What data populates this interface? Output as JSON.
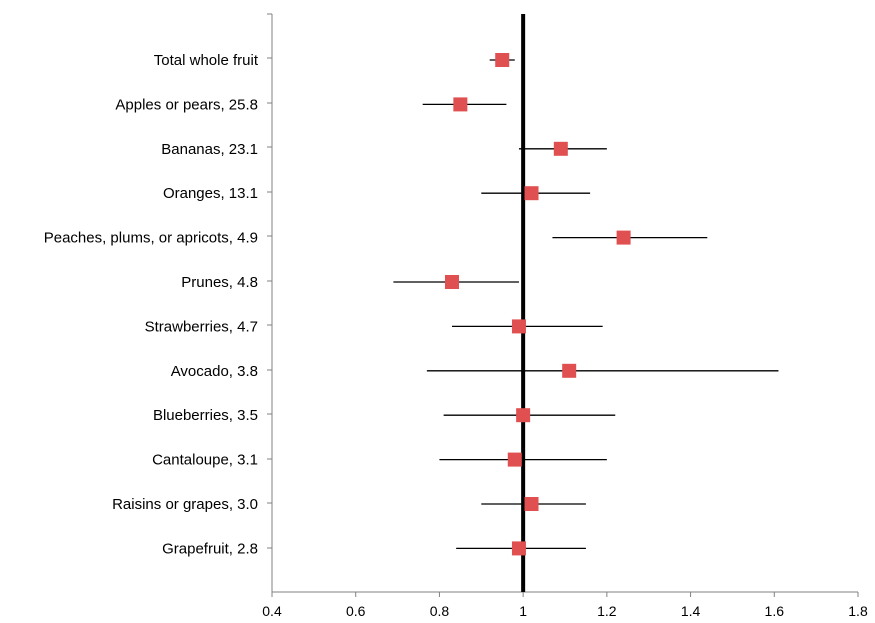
{
  "chart_data": {
    "type": "forest",
    "title": "",
    "xlabel": "",
    "ylabel": "",
    "xlim": [
      0.4,
      1.8
    ],
    "x_ticks": [
      0.4,
      0.6,
      0.8,
      1,
      1.2,
      1.4,
      1.6,
      1.8
    ],
    "x_tick_labels": [
      "0.4",
      "0.6",
      "0.8",
      "1",
      "1.2",
      "1.4",
      "1.6",
      "1.8"
    ],
    "reference_line": 1,
    "grid": false,
    "marker": "square",
    "marker_color": "#e05050",
    "reference_line_color": "#000000",
    "categories": [
      "Total whole fruit",
      "Apples or pears, 25.8",
      "Bananas, 23.1",
      "Oranges, 13.1",
      "Peaches, plums, or apricots, 4.9",
      "Prunes, 4.8",
      "Strawberries, 4.7",
      "Avocado, 3.8",
      "Blueberries, 3.5",
      "Cantaloupe, 3.1",
      "Raisins or grapes, 3.0",
      "Grapefruit, 2.8"
    ],
    "estimates": [
      0.95,
      0.85,
      1.09,
      1.02,
      1.24,
      0.83,
      0.99,
      1.11,
      1.0,
      0.98,
      1.02,
      0.99
    ],
    "ci_lower": [
      0.92,
      0.76,
      0.99,
      0.9,
      1.07,
      0.69,
      0.83,
      0.77,
      0.81,
      0.8,
      0.9,
      0.84
    ],
    "ci_upper": [
      0.98,
      0.96,
      1.2,
      1.16,
      1.44,
      0.99,
      1.19,
      1.61,
      1.22,
      1.2,
      1.15,
      1.15
    ]
  }
}
